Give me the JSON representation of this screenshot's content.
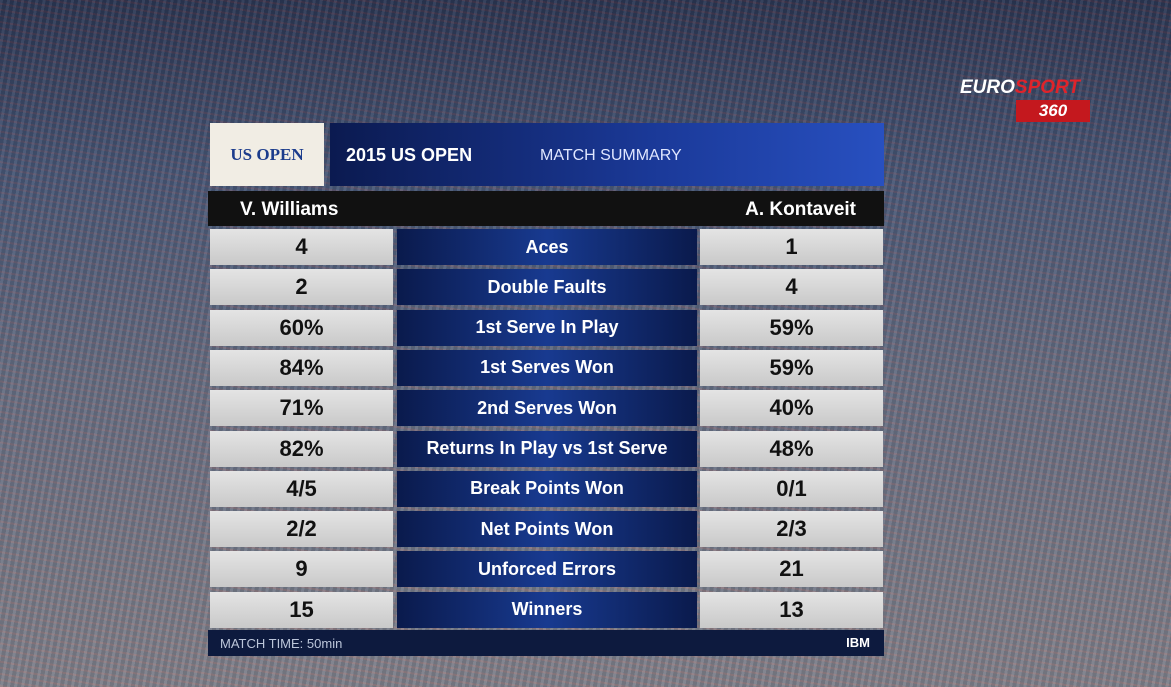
{
  "header": {
    "logo": "US OPEN",
    "title": "2015 US OPEN",
    "subtitle": "MATCH SUMMARY"
  },
  "broadcaster": {
    "name_1": "EURO",
    "name_2": "SPORT",
    "channel": "360"
  },
  "players": [
    "V. Williams",
    "A. Kontaveit"
  ],
  "rows": [
    {
      "left": "4",
      "label": "Aces",
      "right": "1"
    },
    {
      "left": "2",
      "label": "Double Faults",
      "right": "4"
    },
    {
      "left": "60%",
      "label": "1st Serve In Play",
      "right": "59%"
    },
    {
      "left": "84%",
      "label": "1st Serves Won",
      "right": "59%"
    },
    {
      "left": "71%",
      "label": "2nd Serves Won",
      "right": "40%"
    },
    {
      "left": "82%",
      "label": "Returns In Play vs 1st Serve",
      "right": "48%"
    },
    {
      "left": "4/5",
      "label": "Break Points Won",
      "right": "0/1"
    },
    {
      "left": "2/2",
      "label": "Net Points Won",
      "right": "2/3"
    },
    {
      "left": "9",
      "label": "Unforced Errors",
      "right": "21"
    },
    {
      "left": "15",
      "label": "Winners",
      "right": "13"
    }
  ],
  "footer": {
    "match_time": "MATCH TIME: 50min",
    "sponsor": "IBM"
  }
}
